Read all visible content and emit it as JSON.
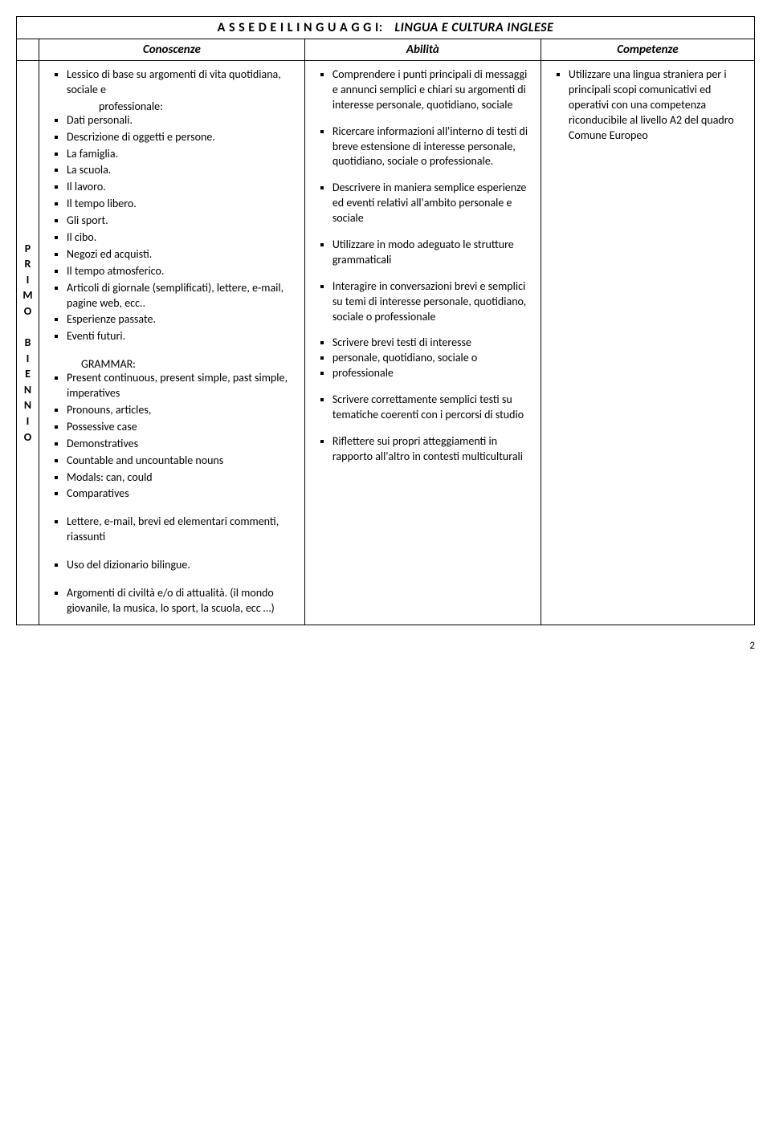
{
  "title_spaced": "A S S E  D E I  L I N G U A G G I:",
  "title_subject": "LINGUA E CULTURA INGLESE",
  "headers": {
    "col1": "Conoscenze",
    "col2": "Abilità",
    "col3": "Competenze"
  },
  "sidebar": [
    "P",
    "R",
    "I",
    "M",
    "O",
    "",
    "B",
    "I",
    "E",
    "N",
    "N",
    "I",
    "O"
  ],
  "conoscenze": {
    "block1": [
      "Lessico di base su argomenti di vita quotidiana, sociale e",
      "Dati personali.",
      "Descrizione di oggetti e persone.",
      "La famiglia.",
      "La scuola.",
      "Il lavoro.",
      "Il tempo libero.",
      "Gli sport.",
      "Il cibo.",
      "Negozi ed acquisti.",
      "Il tempo atmosferico.",
      "Articoli di giornale (semplificati), lettere, e-mail, pagine web, ecc..",
      "Esperienze passate.",
      "Eventi futuri."
    ],
    "block1_indent_after_first": "professionale:",
    "grammar_label": "GRAMMAR:",
    "block2": [
      "Present continuous, present simple, past simple, imperatives",
      "Pronouns, articles,",
      "Possessive case",
      "Demonstratives",
      "Countable and uncountable nouns",
      "Modals: can, could",
      "Comparatives"
    ],
    "block3": [
      "Lettere, e-mail, brevi ed elementari commenti, riassunti"
    ],
    "block4": [
      "Uso del dizionario bilingue."
    ],
    "block5": [
      "Argomenti di civiltà e/o di attualità. (il mondo giovanile, la musica, lo sport, la scuola, ecc …)"
    ]
  },
  "abilita": [
    "Comprendere i punti principali di messaggi e annunci semplici e chiari su argomenti di interesse personale, quotidiano, sociale",
    "Ricercare informazioni all'interno di testi di breve estensione di interesse personale, quotidiano, sociale o professionale.",
    "Descrivere in maniera semplice esperienze ed eventi relativi all'ambito personale e sociale",
    "Utilizzare in modo adeguato le strutture grammaticali",
    "Interagire in conversazioni brevi e semplici su temi di interesse personale, quotidiano, sociale o professionale",
    "Scrivere brevi testi di interesse",
    "personale, quotidiano, sociale o",
    "professionale",
    "Scrivere correttamente semplici testi su tematiche coerenti con i percorsi di studio",
    "Riflettere sui propri atteggiamenti in rapporto all'altro in contesti multiculturali"
  ],
  "abilita_tight_indices": [
    5,
    6,
    7
  ],
  "competenze": [
    "Utilizzare una lingua straniera per i principali scopi comunicativi ed operativi con una competenza riconducibile al livello A2 del quadro Comune Europeo"
  ],
  "page_number": "2",
  "col_widths": {
    "side": "28px",
    "c1": "36%",
    "c2": "32%",
    "c3": "auto"
  }
}
